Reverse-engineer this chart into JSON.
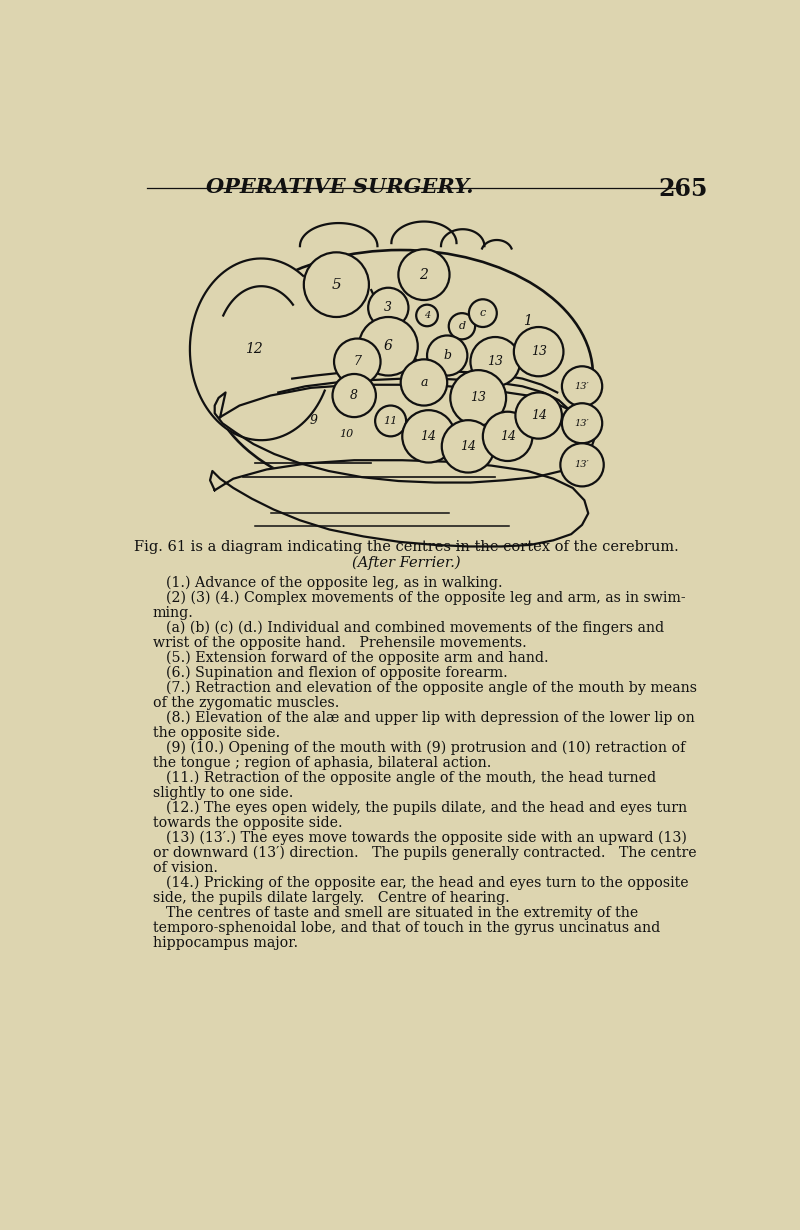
{
  "bg_color": "#ddd5b0",
  "line_color": "#111111",
  "circle_fill": "#ddd5b0",
  "title": "OPERATIVE SURGERY.",
  "page_num": "265",
  "fig_caption_line1": "Fig. 61 is a diagram indicating the centres in the cortex of the cerebrum.",
  "fig_caption_line2": "(After Ferrier.)",
  "description_lines": [
    "(1.) Advance of the opposite leg, as in walking.",
    "(2) (3) (4.) Complex movements of the opposite leg and arm, as in swim-",
    "ming.",
    "(a) (b) (c) (d.) Individual and combined movements of the fingers and",
    "wrist of the opposite hand.   Prehensile movements.",
    "(5.) Extension forward of the opposite arm and hand.",
    "(6.) Supination and flexion of opposite forearm.",
    "(7.) Retraction and elevation of the opposite angle of the mouth by means",
    "of the zygomatic muscles.",
    "(8.) Elevation of the alæ and upper lip with depression of the lower lip on",
    "the opposite side.",
    "(9) (10.) Opening of the mouth with (9) protrusion and (10) retraction of",
    "the tongue ; region of aphasia, bilateral action.",
    "(11.) Retraction of the opposite angle of the mouth, the head turned",
    "slightly to one side.",
    "(12.) The eyes open widely, the pupils dilate, and the head and eyes turn",
    "towards the opposite side.",
    "(13) (13′.) The eyes move towards the opposite side with an upward (13)",
    "or downward (13′) direction.   The pupils generally contracted.   The centre",
    "of vision.",
    "(14.) Pricking of the opposite ear, the head and eyes turn to the opposite",
    "side, the pupils dilate largely.   Centre of hearing.",
    "The centres of taste and smell are situated in the extremity of the",
    "temporo-sphenoidal lobe, and that of touch in the gyrus uncinatus and",
    "hippocampus major."
  ],
  "circles": [
    [
      305,
      178,
      42,
      "5",
      11
    ],
    [
      418,
      165,
      33,
      "2",
      10
    ],
    [
      372,
      208,
      26,
      "3",
      9
    ],
    [
      422,
      218,
      14,
      "4",
      7
    ],
    [
      467,
      232,
      17,
      "d",
      8
    ],
    [
      494,
      215,
      18,
      "c",
      8
    ],
    [
      372,
      258,
      38,
      "6",
      10
    ],
    [
      448,
      270,
      26,
      "b",
      9
    ],
    [
      418,
      305,
      30,
      "a",
      9
    ],
    [
      332,
      278,
      30,
      "7",
      9
    ],
    [
      328,
      322,
      28,
      "8",
      9
    ],
    [
      510,
      278,
      32,
      "13",
      9
    ],
    [
      566,
      265,
      32,
      "13",
      9
    ],
    [
      488,
      325,
      36,
      "13",
      9
    ],
    [
      375,
      355,
      20,
      "11",
      8
    ],
    [
      424,
      375,
      34,
      "14",
      9
    ],
    [
      475,
      388,
      34,
      "14",
      9
    ],
    [
      526,
      375,
      32,
      "14",
      9
    ],
    [
      566,
      348,
      30,
      "14",
      9
    ],
    [
      622,
      310,
      26,
      "13′",
      7
    ],
    [
      622,
      358,
      26,
      "13′",
      7
    ],
    [
      622,
      412,
      28,
      "13′",
      7
    ]
  ],
  "labels_only": [
    [
      198,
      262,
      "12",
      10
    ],
    [
      552,
      225,
      "1",
      10
    ],
    [
      275,
      355,
      "9",
      9
    ],
    [
      318,
      372,
      "10",
      8
    ]
  ]
}
